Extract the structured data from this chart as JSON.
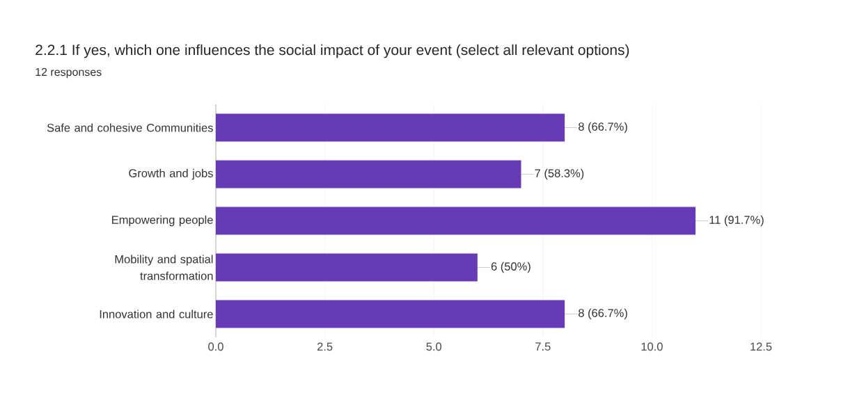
{
  "chart_data": {
    "type": "bar",
    "orientation": "horizontal",
    "title": "2.2.1 If yes, which one influences the social impact of your event (select all relevant options)",
    "subtitle": "12 responses",
    "categories": [
      "Safe and cohesive Communities",
      "Growth and jobs",
      "Empowering people",
      "Mobility and spatial transformation",
      "Innovation and culture"
    ],
    "values": [
      8,
      7,
      11,
      6,
      8
    ],
    "value_labels": [
      "8 (66.7%)",
      "7 (58.3%)",
      "11 (91.7%)",
      "6 (50%)",
      "8 (66.7%)"
    ],
    "color": "#673ab7",
    "xlim": [
      0,
      12.5
    ],
    "xticks": [
      {
        "value": 0,
        "label": "0.0"
      },
      2.5,
      {
        "value": 5,
        "label": "5.0"
      },
      7.5,
      {
        "value": 10,
        "label": "10.0"
      },
      12.5
    ],
    "grid": "x"
  }
}
